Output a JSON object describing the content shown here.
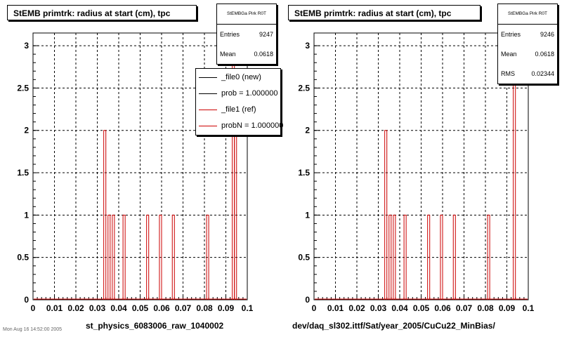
{
  "chart_data": [
    {
      "type": "bar",
      "title": "StEMB primtrk: radius at start (cm), tpc",
      "stats": {
        "name": "StEMBGa Pirk R0T",
        "entries_label": "Entries",
        "entries": "9247",
        "mean_label": "Mean",
        "mean": "0.0618"
      },
      "legend": [
        {
          "label": "_file0 (new)",
          "color": "#000000"
        },
        {
          "label": "prob = 1.000000",
          "color": "#000000"
        },
        {
          "label": "_file1 (ref)",
          "color": "#cc0000"
        },
        {
          "label": "probN = 1.000000",
          "color": "#cc0000"
        }
      ],
      "run_label": "st_physics_6083006_raw_1040002",
      "xlim": [
        0,
        0.1
      ],
      "ylim": [
        0,
        3.15
      ],
      "x_ticks": [
        "0",
        "0.01",
        "0.02",
        "0.03",
        "0.04",
        "0.05",
        "0.06",
        "0.07",
        "0.08",
        "0.09",
        "0.1"
      ],
      "y_ticks": [
        "0",
        "0.5",
        "1",
        "1.5",
        "2",
        "2.5",
        "3"
      ],
      "grid": true,
      "bins": [
        {
          "x": 0.0335,
          "y": 2
        },
        {
          "x": 0.0355,
          "y": 1
        },
        {
          "x": 0.0375,
          "y": 1
        },
        {
          "x": 0.0425,
          "y": 1
        },
        {
          "x": 0.0535,
          "y": 1
        },
        {
          "x": 0.0595,
          "y": 1
        },
        {
          "x": 0.0655,
          "y": 1
        },
        {
          "x": 0.0815,
          "y": 1
        },
        {
          "x": 0.0935,
          "y": 3
        },
        {
          "x": 0.0945,
          "y": 2
        }
      ]
    },
    {
      "type": "bar",
      "title": "StEMB primtrk: radius at start (cm), tpc",
      "stats": {
        "name": "StEMBGa Pirk R0T",
        "entries_label": "Entries",
        "entries": "9246",
        "mean_label": "Mean",
        "mean": "0.0618",
        "rms_label": "RMS",
        "rms": "0.02344"
      },
      "run_label": "dev/daq_sl302.ittf/Sat/year_2005/CuCu22_MinBias/",
      "xlim": [
        0,
        0.1
      ],
      "ylim": [
        0,
        3.15
      ],
      "x_ticks": [
        "0",
        "0.01",
        "0.02",
        "0.03",
        "0.04",
        "0.05",
        "0.06",
        "0.07",
        "0.08",
        "0.09",
        "0.1"
      ],
      "y_ticks": [
        "0",
        "0.5",
        "1",
        "1.5",
        "2",
        "2.5",
        "3"
      ],
      "grid": true,
      "bins": [
        {
          "x": 0.0335,
          "y": 2
        },
        {
          "x": 0.0355,
          "y": 1
        },
        {
          "x": 0.0375,
          "y": 1
        },
        {
          "x": 0.0425,
          "y": 1
        },
        {
          "x": 0.0535,
          "y": 1
        },
        {
          "x": 0.0595,
          "y": 1
        },
        {
          "x": 0.0655,
          "y": 1
        },
        {
          "x": 0.0815,
          "y": 1
        },
        {
          "x": 0.0935,
          "y": 3
        }
      ]
    }
  ],
  "colors": {
    "line_color": "#cc0000",
    "axis": "#000000",
    "grid": "#000000"
  },
  "timestamp": "Mon Aug 16 14:52:00 2005"
}
